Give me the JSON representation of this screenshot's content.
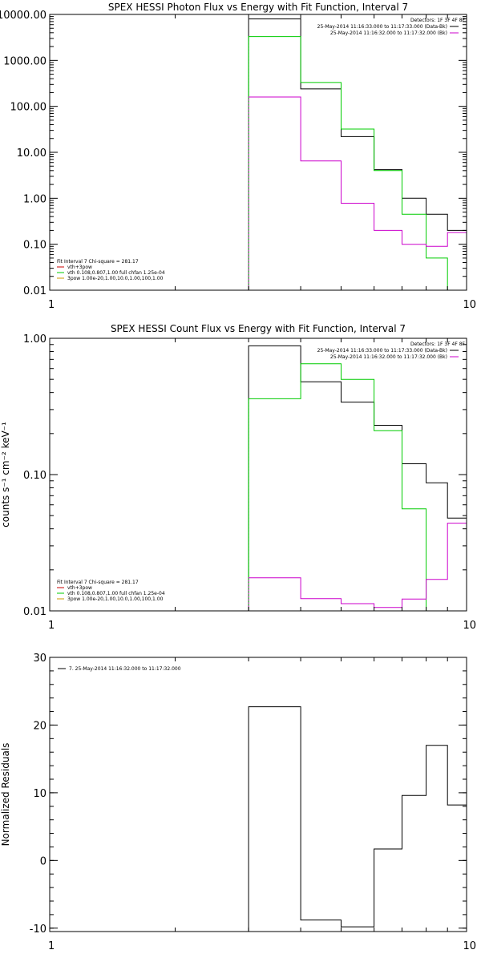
{
  "chart_data": [
    {
      "type": "line",
      "title": "SPEX HESSI Photon Flux vs Energy with Fit Function, Interval 7",
      "xlabel": "",
      "ylabel": "",
      "xscale": "log",
      "yscale": "log",
      "xlim": [
        1,
        10
      ],
      "ylim": [
        0.01,
        10000
      ],
      "x_ticks": [
        {
          "label": "1",
          "value": 1
        },
        {
          "label": "10",
          "value": 10
        }
      ],
      "y_ticks": [
        {
          "label": "10000.00",
          "value": 10000
        },
        {
          "label": "1000.00",
          "value": 1000
        },
        {
          "label": "100.00",
          "value": 100
        },
        {
          "label": "10.00",
          "value": 10
        },
        {
          "label": "1.00",
          "value": 1
        },
        {
          "label": "0.10",
          "value": 0.1
        },
        {
          "label": "0.01",
          "value": 0.01
        }
      ],
      "edges": [
        3.0,
        4.0,
        5.0,
        6.0,
        7.0,
        8.0,
        9.0,
        10.0
      ],
      "legend_top_right": {
        "header": "Detectors: 1F 3F 4F 8F",
        "entries": [
          {
            "label": "25-May-2014 11:16:33.000 to 11:17:33.000 (Data-Bk)",
            "color": "#000000"
          },
          {
            "label": "25-May-2014 11:16:32.000 to 11:17:32.000 (Bk)",
            "color": "#cc00cc"
          }
        ]
      },
      "legend_bottom_left": {
        "header": "Fit Interval 7   Chi-square = 281.17",
        "entries": [
          {
            "label": "vth+3pow",
            "color": "#cc0000"
          },
          {
            "label": "vth 0.108,0.807,1.00  full chfan 1.25e-04",
            "color": "#00cc00"
          },
          {
            "label": "3pow 1.00e-20,1.00,10.0,1.00,100,1.00",
            "color": "#cc9900"
          }
        ]
      },
      "series": [
        {
          "name": "Data-Bk",
          "color": "#000000",
          "values": [
            8000,
            240,
            22,
            4.2,
            1.0,
            0.45,
            0.2
          ]
        },
        {
          "name": "Model",
          "color": "#00cc00",
          "values": [
            3300,
            330,
            32,
            4.0,
            0.45,
            0.05,
            0.005
          ]
        },
        {
          "name": "Bk",
          "color": "#cc00cc",
          "values": [
            160,
            6.5,
            0.78,
            0.2,
            0.1,
            0.09,
            0.18
          ]
        }
      ]
    },
    {
      "type": "line",
      "title": "SPEX HESSI Count Flux vs Energy with Fit Function, Interval 7",
      "xlabel": "",
      "ylabel": "counts s⁻¹ cm⁻² keV⁻¹",
      "xscale": "log",
      "yscale": "log",
      "xlim": [
        1,
        10
      ],
      "ylim": [
        0.01,
        1.0
      ],
      "x_ticks": [
        {
          "label": "1",
          "value": 1
        },
        {
          "label": "10",
          "value": 10
        }
      ],
      "y_ticks": [
        {
          "label": "1.00",
          "value": 1.0
        },
        {
          "label": "0.10",
          "value": 0.1
        },
        {
          "label": "0.01",
          "value": 0.01
        }
      ],
      "edges": [
        3.0,
        4.0,
        5.0,
        6.0,
        7.0,
        8.0,
        9.0,
        10.0
      ],
      "legend_top_right": {
        "header": "Detectors: 1F 3F 4F 8F",
        "entries": [
          {
            "label": "25-May-2014 11:16:33.000 to 11:17:33.000 (Data-Bk)",
            "color": "#000000"
          },
          {
            "label": "25-May-2014 11:16:32.000 to 11:17:32.000 (Bk)",
            "color": "#cc00cc"
          }
        ]
      },
      "legend_bottom_left": {
        "header": "Fit Interval 7   Chi-square = 281.17",
        "entries": [
          {
            "label": "vth+3pow",
            "color": "#cc0000"
          },
          {
            "label": "vth 0.108,0.807,1.00  full chfan 1.25e-04",
            "color": "#00cc00"
          },
          {
            "label": "3pow 1.00e-20,1.00,10.0,1.00,100,1.00",
            "color": "#cc9900"
          }
        ]
      },
      "series": [
        {
          "name": "Data-Bk",
          "color": "#000000",
          "values": [
            0.88,
            0.48,
            0.34,
            0.23,
            0.12,
            0.087,
            0.048
          ]
        },
        {
          "name": "Model",
          "color": "#00cc00",
          "values": [
            0.36,
            0.65,
            0.5,
            0.21,
            0.056,
            0.01,
            0.003
          ]
        },
        {
          "name": "Bk",
          "color": "#cc00cc",
          "values": [
            0.0175,
            0.0123,
            0.0113,
            0.0106,
            0.0122,
            0.017,
            0.044
          ]
        }
      ]
    },
    {
      "type": "line",
      "title": "",
      "xlabel": "",
      "ylabel": "Normalized Residuals",
      "xscale": "log",
      "yscale": "linear",
      "xlim": [
        1,
        10
      ],
      "ylim": [
        -10.5,
        30
      ],
      "x_ticks": [
        {
          "label": "1",
          "value": 1
        },
        {
          "label": "10",
          "value": 10
        }
      ],
      "y_ticks": [
        {
          "label": "30",
          "value": 30
        },
        {
          "label": "20",
          "value": 20
        },
        {
          "label": "10",
          "value": 10
        },
        {
          "label": "0",
          "value": 0
        },
        {
          "label": "-10",
          "value": -10
        }
      ],
      "edges": [
        3.0,
        4.0,
        5.0,
        6.0,
        7.0,
        8.0,
        9.0,
        10.0
      ],
      "legend_top_left": {
        "entries": [
          {
            "label": "7. 25-May-2014 11:16:32.000 to 11:17:32.000",
            "color": "#000000"
          }
        ]
      },
      "series": [
        {
          "name": "7. 25-May-2014 11:16:32.000 to 11:17:32.000",
          "color": "#000000",
          "values": [
            22.7,
            -8.8,
            -9.8,
            1.7,
            9.6,
            17.0,
            8.2
          ]
        }
      ]
    }
  ]
}
